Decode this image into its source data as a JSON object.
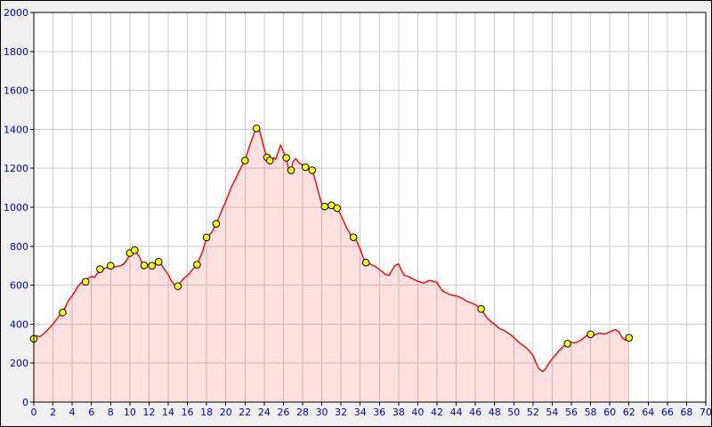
{
  "chart_data": {
    "type": "area",
    "title": "",
    "xlabel": "",
    "ylabel": "",
    "xlim": [
      0,
      70
    ],
    "ylim": [
      0,
      2000
    ],
    "x_tick_step": 2,
    "y_tick_step": 200,
    "grid": true,
    "legend": "none",
    "colors": {
      "background": "#f0f0f0",
      "plot_background": "#ffffff",
      "grid": "#cccccc",
      "line": "#ff0000",
      "fill": "rgba(255,0,0,0.12)",
      "marker_fill": "#ffff00",
      "marker_stroke": "#000000",
      "axis_text": "#0000cc",
      "tick": "#000000",
      "frame": "#000000"
    },
    "profile": [
      [
        0,
        325
      ],
      [
        0.3,
        340
      ],
      [
        0.6,
        336
      ],
      [
        1,
        350
      ],
      [
        1.3,
        364
      ],
      [
        1.6,
        380
      ],
      [
        2,
        400
      ],
      [
        2.3,
        420
      ],
      [
        2.6,
        440
      ],
      [
        3,
        460
      ],
      [
        3.3,
        490
      ],
      [
        3.6,
        520
      ],
      [
        4,
        545
      ],
      [
        4.3,
        570
      ],
      [
        4.6,
        596
      ],
      [
        5,
        615
      ],
      [
        5.3,
        625
      ],
      [
        5.6,
        634
      ],
      [
        6,
        645
      ],
      [
        6.3,
        640
      ],
      [
        6.6,
        660
      ],
      [
        7,
        678
      ],
      [
        7.3,
        686
      ],
      [
        7.6,
        690
      ],
      [
        8,
        700
      ],
      [
        8.3,
        692
      ],
      [
        8.6,
        696
      ],
      [
        9,
        700
      ],
      [
        9.3,
        706
      ],
      [
        9.6,
        722
      ],
      [
        10,
        756
      ],
      [
        10.3,
        775
      ],
      [
        10.5,
        780
      ],
      [
        11,
        746
      ],
      [
        11.3,
        712
      ],
      [
        11.6,
        700
      ],
      [
        12,
        706
      ],
      [
        12.3,
        700
      ],
      [
        12.6,
        710
      ],
      [
        13,
        720
      ],
      [
        13.3,
        706
      ],
      [
        13.6,
        682
      ],
      [
        14,
        655
      ],
      [
        14.3,
        625
      ],
      [
        14.6,
        605
      ],
      [
        15,
        595
      ],
      [
        15.3,
        616
      ],
      [
        15.6,
        634
      ],
      [
        16,
        650
      ],
      [
        16.3,
        666
      ],
      [
        16.6,
        684
      ],
      [
        17,
        705
      ],
      [
        17.3,
        740
      ],
      [
        17.6,
        776
      ],
      [
        18,
        845
      ],
      [
        18.3,
        858
      ],
      [
        18.6,
        876
      ],
      [
        19,
        915
      ],
      [
        19.3,
        950
      ],
      [
        19.6,
        986
      ],
      [
        20,
        1030
      ],
      [
        20.3,
        1068
      ],
      [
        20.6,
        1106
      ],
      [
        21,
        1144
      ],
      [
        21.3,
        1176
      ],
      [
        21.6,
        1206
      ],
      [
        22,
        1240
      ],
      [
        22.3,
        1288
      ],
      [
        22.6,
        1332
      ],
      [
        23,
        1386
      ],
      [
        23.2,
        1405
      ],
      [
        23.5,
        1396
      ],
      [
        23.8,
        1342
      ],
      [
        24,
        1300
      ],
      [
        24.3,
        1256
      ],
      [
        24.6,
        1240
      ],
      [
        25,
        1254
      ],
      [
        25.2,
        1246
      ],
      [
        25.5,
        1288
      ],
      [
        25.7,
        1320
      ],
      [
        26,
        1286
      ],
      [
        26.3,
        1254
      ],
      [
        26.5,
        1206
      ],
      [
        26.8,
        1190
      ],
      [
        27,
        1234
      ],
      [
        27.3,
        1250
      ],
      [
        27.6,
        1230
      ],
      [
        28,
        1216
      ],
      [
        28.3,
        1206
      ],
      [
        28.6,
        1200
      ],
      [
        29,
        1190
      ],
      [
        29.3,
        1144
      ],
      [
        29.6,
        1086
      ],
      [
        30,
        1016
      ],
      [
        30.3,
        1004
      ],
      [
        30.6,
        1000
      ],
      [
        31,
        1010
      ],
      [
        31.3,
        1006
      ],
      [
        31.6,
        996
      ],
      [
        32,
        960
      ],
      [
        32.3,
        926
      ],
      [
        32.6,
        894
      ],
      [
        33,
        860
      ],
      [
        33.3,
        846
      ],
      [
        33.6,
        830
      ],
      [
        34,
        786
      ],
      [
        34.3,
        744
      ],
      [
        34.6,
        716
      ],
      [
        35,
        710
      ],
      [
        35.3,
        702
      ],
      [
        35.6,
        696
      ],
      [
        36,
        680
      ],
      [
        36.3,
        670
      ],
      [
        36.6,
        656
      ],
      [
        37,
        650
      ],
      [
        37.3,
        676
      ],
      [
        37.6,
        700
      ],
      [
        38,
        710
      ],
      [
        38.3,
        676
      ],
      [
        38.6,
        650
      ],
      [
        39,
        646
      ],
      [
        39.3,
        636
      ],
      [
        39.6,
        630
      ],
      [
        40,
        620
      ],
      [
        40.3,
        616
      ],
      [
        40.6,
        610
      ],
      [
        41,
        620
      ],
      [
        41.3,
        624
      ],
      [
        41.6,
        620
      ],
      [
        42,
        614
      ],
      [
        42.3,
        590
      ],
      [
        42.6,
        570
      ],
      [
        43,
        560
      ],
      [
        43.3,
        552
      ],
      [
        43.6,
        548
      ],
      [
        44,
        545
      ],
      [
        44.3,
        540
      ],
      [
        44.6,
        534
      ],
      [
        45,
        520
      ],
      [
        45.3,
        514
      ],
      [
        45.6,
        508
      ],
      [
        46,
        500
      ],
      [
        46.3,
        490
      ],
      [
        46.6,
        478
      ],
      [
        47,
        446
      ],
      [
        47.3,
        428
      ],
      [
        47.6,
        414
      ],
      [
        48,
        400
      ],
      [
        48.3,
        386
      ],
      [
        48.6,
        375
      ],
      [
        49,
        368
      ],
      [
        49.3,
        358
      ],
      [
        49.6,
        348
      ],
      [
        50,
        332
      ],
      [
        50.3,
        318
      ],
      [
        50.6,
        304
      ],
      [
        51,
        290
      ],
      [
        51.3,
        278
      ],
      [
        51.6,
        264
      ],
      [
        52,
        240
      ],
      [
        52.3,
        204
      ],
      [
        52.6,
        172
      ],
      [
        53,
        158
      ],
      [
        53.3,
        170
      ],
      [
        53.6,
        196
      ],
      [
        54,
        222
      ],
      [
        54.3,
        240
      ],
      [
        54.6,
        256
      ],
      [
        55,
        278
      ],
      [
        55.3,
        292
      ],
      [
        55.6,
        300
      ],
      [
        56,
        308
      ],
      [
        56.3,
        303
      ],
      [
        56.6,
        308
      ],
      [
        57,
        318
      ],
      [
        57.3,
        330
      ],
      [
        57.6,
        342
      ],
      [
        58,
        348
      ],
      [
        58.3,
        340
      ],
      [
        58.6,
        350
      ],
      [
        59,
        355
      ],
      [
        59.3,
        350
      ],
      [
        59.6,
        352
      ],
      [
        60,
        360
      ],
      [
        60.3,
        368
      ],
      [
        60.6,
        372
      ],
      [
        61,
        358
      ],
      [
        61.3,
        330
      ],
      [
        61.6,
        318
      ],
      [
        62,
        330
      ]
    ],
    "markers": [
      [
        0,
        325
      ],
      [
        3,
        460
      ],
      [
        5.4,
        618
      ],
      [
        6.9,
        682
      ],
      [
        8,
        700
      ],
      [
        10,
        765
      ],
      [
        10.5,
        780
      ],
      [
        11.5,
        702
      ],
      [
        12.3,
        700
      ],
      [
        13,
        720
      ],
      [
        15,
        595
      ],
      [
        17,
        705
      ],
      [
        18,
        845
      ],
      [
        19,
        915
      ],
      [
        22,
        1240
      ],
      [
        23.2,
        1405
      ],
      [
        24.3,
        1256
      ],
      [
        24.6,
        1240
      ],
      [
        26.3,
        1254
      ],
      [
        26.8,
        1190
      ],
      [
        28.3,
        1206
      ],
      [
        29,
        1190
      ],
      [
        30.3,
        1004
      ],
      [
        31,
        1010
      ],
      [
        31.6,
        996
      ],
      [
        33.3,
        846
      ],
      [
        34.6,
        716
      ],
      [
        46.6,
        478
      ],
      [
        55.6,
        300
      ],
      [
        58,
        348
      ],
      [
        62,
        330
      ]
    ]
  }
}
